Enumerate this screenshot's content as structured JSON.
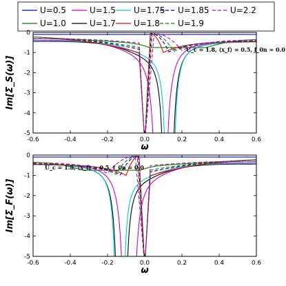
{
  "chart_data": [
    {
      "type": "line",
      "ylabel": "Im[Σ_S(ω)]",
      "xlabel": "ω",
      "xlim": [
        -0.6,
        0.6
      ],
      "ylim": [
        -5,
        0
      ],
      "xticks": [
        "-0.6",
        "-0.4",
        "-0.2",
        "0.0",
        "0.2",
        "0.4",
        "0.6"
      ],
      "yticks": [
        "-5",
        "-4",
        "-3",
        "-2",
        "-1",
        "0"
      ],
      "annotation": "U_c = 1.8, ⟨x_f⟩ = 0.5, f_0n = 0.0",
      "peak_side": "right",
      "series": [
        {
          "name": "U=0.5",
          "color": "#0000ff",
          "dash": "solid",
          "shape": "flat",
          "level": -0.1
        },
        {
          "name": "U=1.0",
          "color": "#008000",
          "dash": "solid",
          "shape": "smooth",
          "amp": 0.65,
          "base": -0.22
        },
        {
          "name": "U=1.5",
          "color": "#cc00cc",
          "dash": "solid",
          "shape": "peak",
          "pos": 0.085,
          "width": 0.045,
          "near": -1.05,
          "far": -0.42
        },
        {
          "name": "U=1.7",
          "color": "#000000",
          "dash": "solid",
          "shape": "peak",
          "pos": 0.125,
          "width": 0.028,
          "near": -1.25,
          "far": -0.45
        },
        {
          "name": "U=1.75",
          "color": "#00cccc",
          "dash": "solid",
          "shape": "peak",
          "pos": 0.135,
          "width": 0.022,
          "near": -1.2,
          "far": -0.45
        },
        {
          "name": "U=1.8",
          "color": "#ff0000",
          "dash": "solid",
          "shape": "dip",
          "dipAt": 0.03,
          "edge": 0.1,
          "near": -1.1,
          "far": -0.45
        },
        {
          "name": "U=1.85",
          "color": "#0000aa",
          "dash": "dashed",
          "shape": "dip",
          "dipAt": 0.035,
          "edge": 0.13,
          "near": -0.9,
          "far": -0.42
        },
        {
          "name": "U=1.9",
          "color": "#008000",
          "dash": "dashed",
          "shape": "dip",
          "dipAt": 0.04,
          "edge": 0.155,
          "near": -0.8,
          "far": -0.4
        },
        {
          "name": "U=2.2",
          "color": "#cc00cc",
          "dash": "dashed",
          "shape": "dip",
          "dipAt": 0.05,
          "edge": 0.2,
          "near": -0.55,
          "far": -0.35
        }
      ]
    },
    {
      "type": "line",
      "ylabel": "Im[Σ_F(ω)]",
      "xlabel": "ω",
      "xlim": [
        -0.6,
        0.6
      ],
      "ylim": [
        -5,
        0
      ],
      "xticks": [
        "-0.6",
        "-0.4",
        "-0.2",
        "0.0",
        "0.2",
        "0.4",
        "0.6"
      ],
      "yticks": [
        "-5",
        "-4",
        "-3",
        "-2",
        "-1",
        "0"
      ],
      "annotation": "U_c = 1.8, ⟨x_f⟩ = 0.5, f_0n = 0.0",
      "peak_side": "left",
      "series": [
        {
          "name": "U=0.5",
          "color": "#0000ff",
          "dash": "solid",
          "shape": "flat",
          "level": -0.1
        },
        {
          "name": "U=1.0",
          "color": "#008000",
          "dash": "solid",
          "shape": "smooth",
          "amp": 0.65,
          "base": -0.22
        },
        {
          "name": "U=1.5",
          "color": "#cc00cc",
          "dash": "solid",
          "shape": "peak",
          "pos": 0.085,
          "width": 0.045,
          "near": -1.05,
          "far": -0.42
        },
        {
          "name": "U=1.7",
          "color": "#000000",
          "dash": "solid",
          "shape": "peak",
          "pos": 0.125,
          "width": 0.028,
          "near": -1.25,
          "far": -0.45
        },
        {
          "name": "U=1.75",
          "color": "#00cccc",
          "dash": "solid",
          "shape": "peak",
          "pos": 0.135,
          "width": 0.022,
          "near": -1.2,
          "far": -0.45
        },
        {
          "name": "U=1.8",
          "color": "#ff0000",
          "dash": "solid",
          "shape": "dip",
          "dipAt": 0.03,
          "edge": 0.1,
          "near": -1.1,
          "far": -0.45
        },
        {
          "name": "U=1.85",
          "color": "#0000aa",
          "dash": "dashed",
          "shape": "dip",
          "dipAt": 0.035,
          "edge": 0.13,
          "near": -0.9,
          "far": -0.42
        },
        {
          "name": "U=1.9",
          "color": "#008000",
          "dash": "dashed",
          "shape": "dip",
          "dipAt": 0.04,
          "edge": 0.155,
          "near": -0.8,
          "far": -0.4
        },
        {
          "name": "U=2.2",
          "color": "#cc00cc",
          "dash": "dashed",
          "shape": "dip",
          "dipAt": 0.05,
          "edge": 0.2,
          "near": -0.55,
          "far": -0.35
        }
      ]
    }
  ],
  "legend": {
    "placement": "top",
    "columns": 5,
    "order": [
      "U=0.5",
      "U=1.0",
      "U=1.5",
      "U=1.7",
      "U=1.75",
      "U=1.8",
      "U=1.85",
      "U=1.9",
      "U=2.2"
    ]
  }
}
